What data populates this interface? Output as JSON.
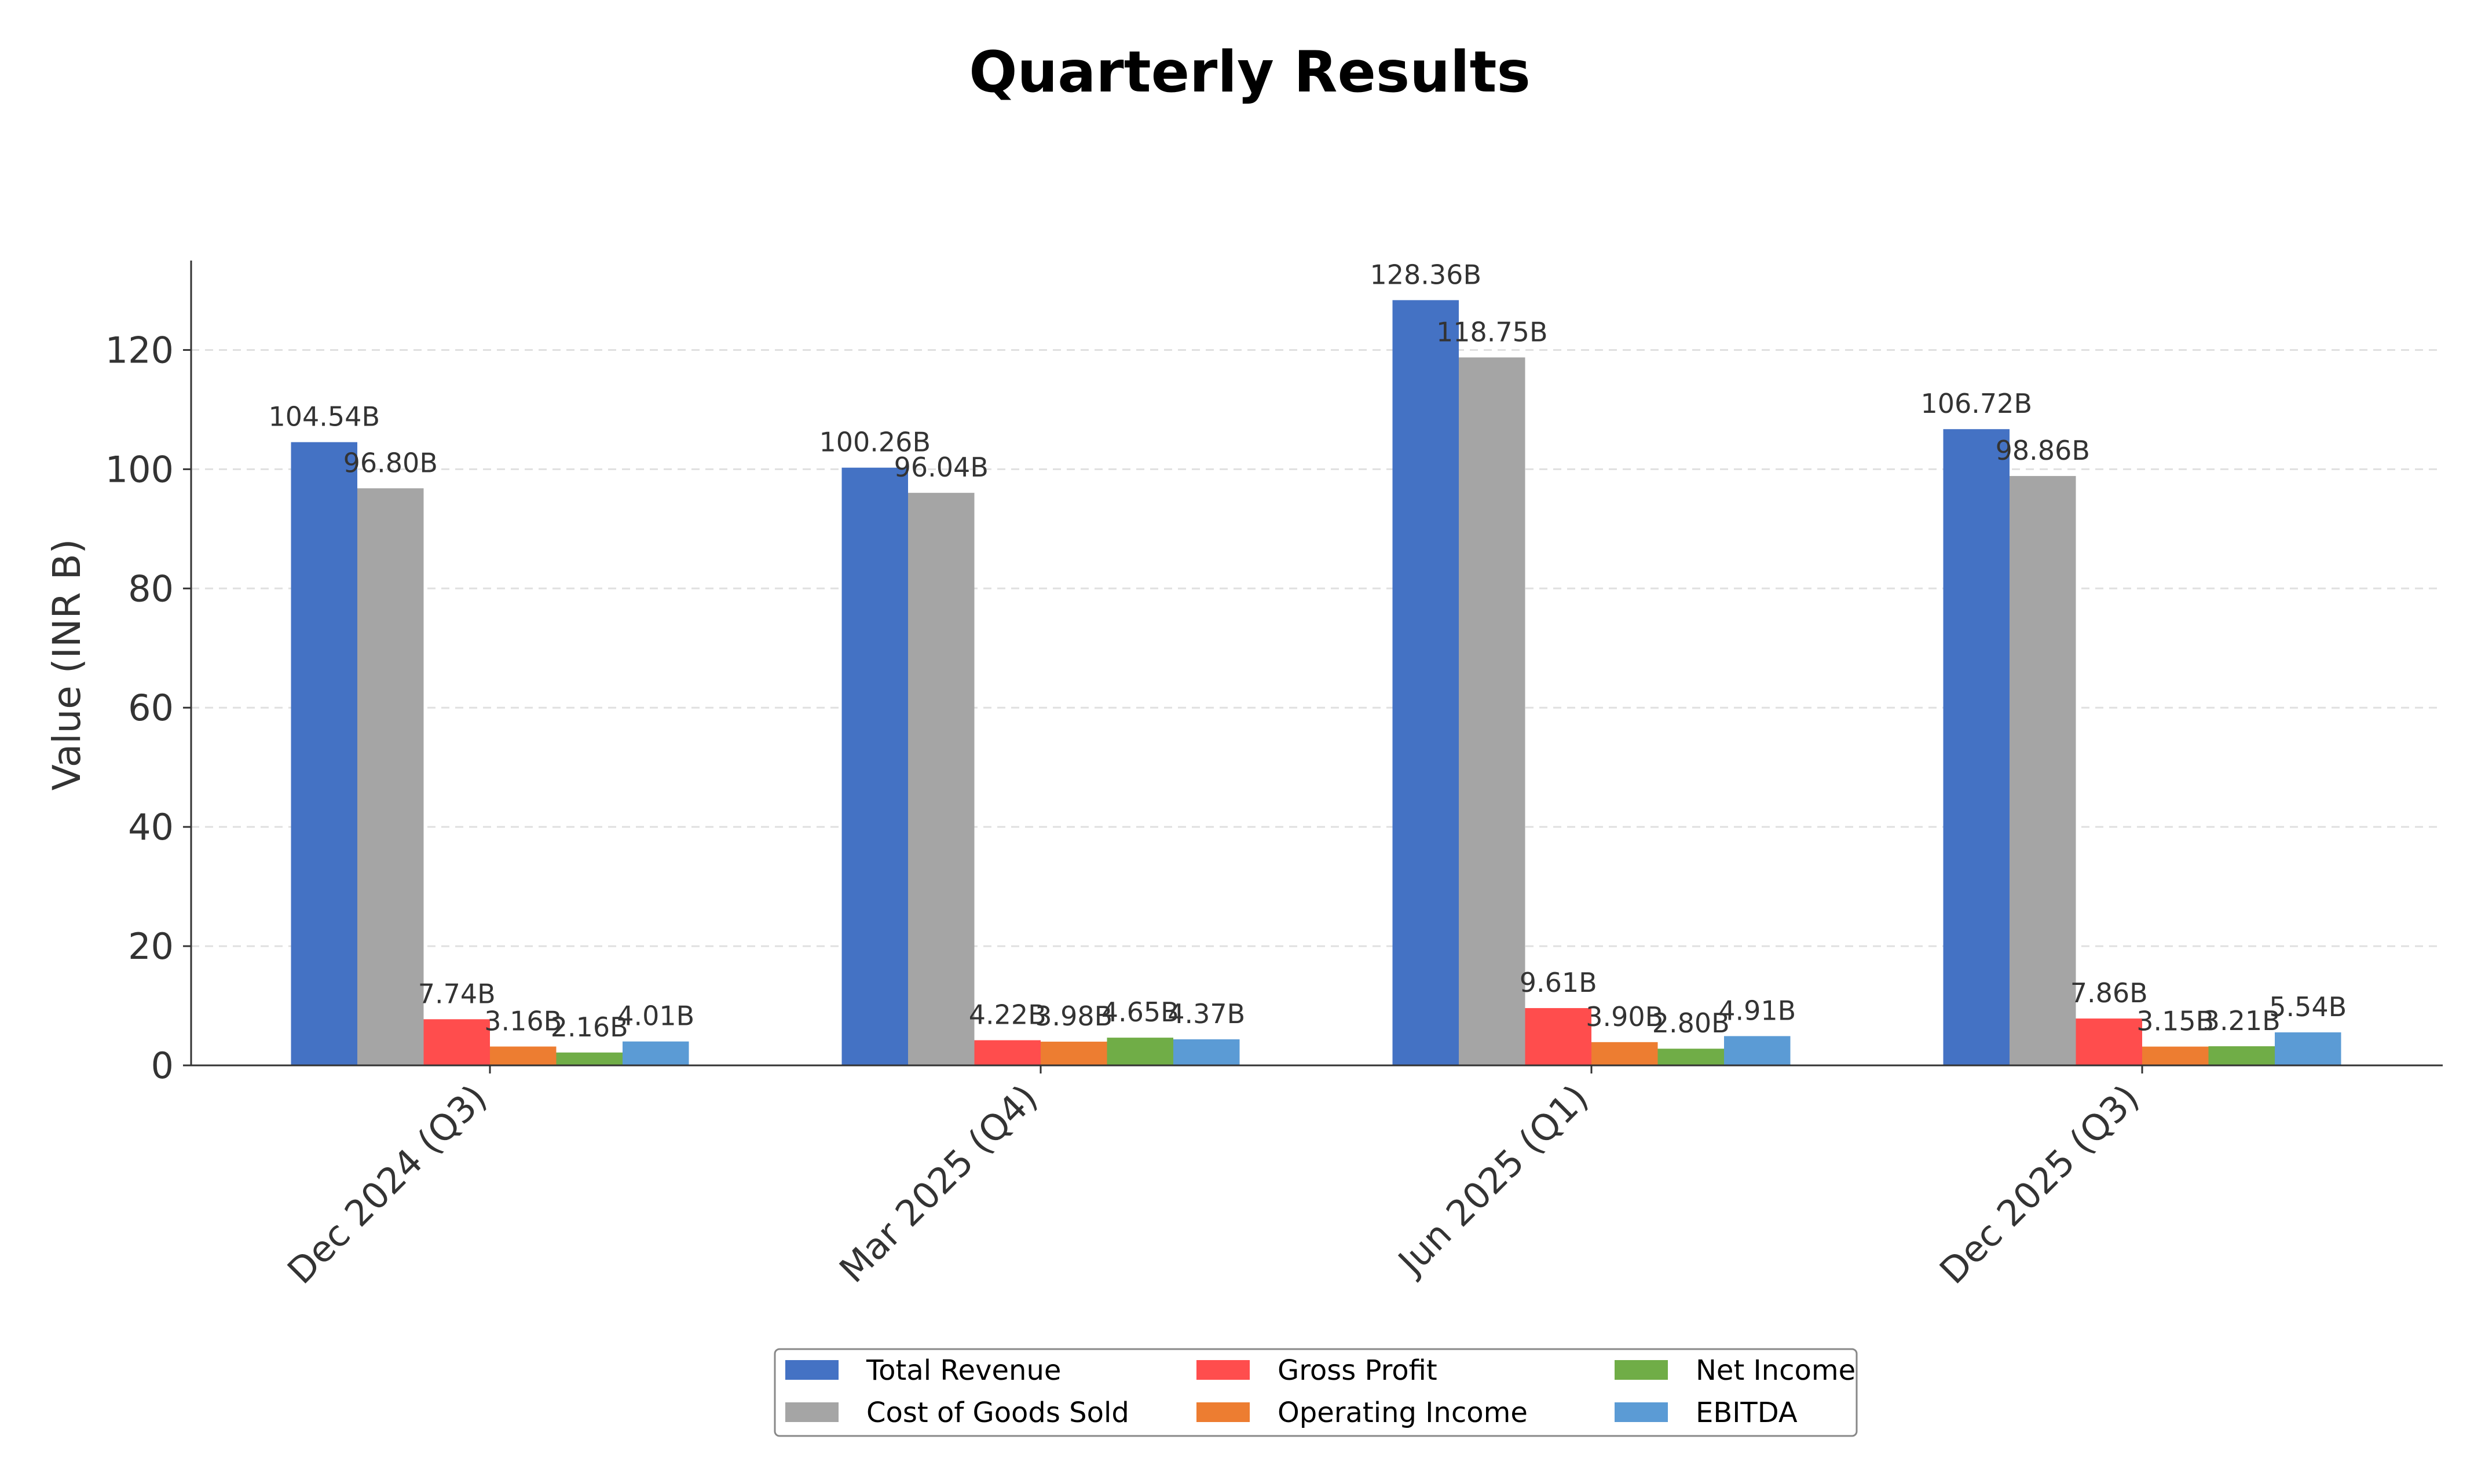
{
  "chart_data": {
    "type": "bar",
    "title": "Quarterly Results",
    "xlabel": "",
    "ylabel": "Value (INR B)",
    "ylim": [
      0,
      135
    ],
    "yticks": [
      0,
      20,
      40,
      60,
      80,
      100,
      120
    ],
    "grid": "horizontal dashed",
    "legend_position": "bottom-center",
    "categories": [
      "Dec 2024 (Q3)",
      "Mar 2025 (Q4)",
      "Jun 2025 (Q1)",
      "Dec 2025 (Q3)"
    ],
    "series": [
      {
        "name": "Total Revenue",
        "color": "#4472c4",
        "values": [
          104.54,
          100.26,
          128.36,
          106.72
        ],
        "labels": [
          "104.54B",
          "100.26B",
          "128.36B",
          "106.72B"
        ]
      },
      {
        "name": "Cost of Goods Sold",
        "color": "#a5a5a5",
        "values": [
          96.8,
          96.04,
          118.75,
          98.86
        ],
        "labels": [
          "96.80B",
          "96.04B",
          "118.75B",
          "98.86B"
        ]
      },
      {
        "name": "Gross Profit",
        "color": "#ff4d4d",
        "values": [
          7.74,
          4.22,
          9.61,
          7.86
        ],
        "labels": [
          "7.74B",
          "4.22B",
          "9.61B",
          "7.86B"
        ]
      },
      {
        "name": "Operating Income",
        "color": "#ed7d31",
        "values": [
          3.16,
          3.98,
          3.9,
          3.15
        ],
        "labels": [
          "3.16B",
          "3.98B",
          "3.90B",
          "3.15B"
        ]
      },
      {
        "name": "Net Income",
        "color": "#70ad47",
        "values": [
          2.16,
          4.65,
          2.8,
          3.21
        ],
        "labels": [
          "2.16B",
          "4.65B",
          "2.80B",
          "3.21B"
        ]
      },
      {
        "name": "EBITDA",
        "color": "#5b9bd5",
        "values": [
          4.01,
          4.37,
          4.91,
          5.54
        ],
        "labels": [
          "4.01B",
          "4.37B",
          "4.91B",
          "5.54B"
        ]
      }
    ]
  }
}
